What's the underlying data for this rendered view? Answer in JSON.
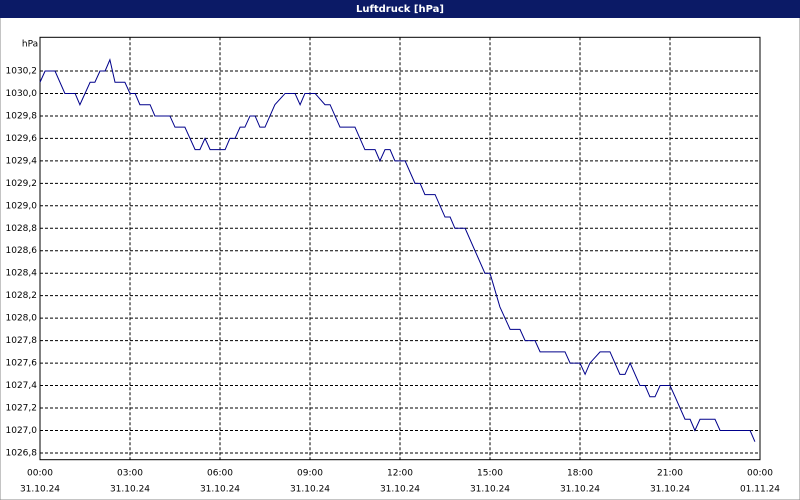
{
  "chart_data": {
    "type": "line",
    "title": "Luftdruck [hPa]",
    "y_unit": "hPa",
    "x": [
      0,
      0.17,
      0.5,
      0.83,
      1.17,
      1.33,
      1.67,
      1.83,
      2.0,
      2.17,
      2.33,
      2.5,
      2.83,
      3.0,
      3.17,
      3.33,
      3.67,
      3.83,
      4.33,
      4.5,
      4.83,
      5.17,
      5.33,
      5.5,
      5.67,
      6.17,
      6.33,
      6.5,
      6.67,
      6.83,
      7.0,
      7.17,
      7.33,
      7.5,
      7.83,
      8.17,
      8.5,
      8.67,
      8.83,
      9.17,
      9.5,
      9.67,
      10.0,
      10.5,
      10.83,
      11.17,
      11.33,
      11.5,
      11.67,
      11.83,
      12.17,
      12.5,
      12.67,
      12.83,
      13.17,
      13.5,
      13.67,
      13.83,
      14.17,
      14.83,
      15.0,
      15.33,
      15.67,
      16.0,
      16.17,
      16.5,
      16.67,
      17.5,
      17.67,
      18.0,
      18.17,
      18.33,
      18.67,
      19.0,
      19.33,
      19.5,
      19.67,
      20.0,
      20.17,
      20.33,
      20.5,
      20.67,
      21.0,
      21.17,
      21.5,
      21.67,
      21.83,
      22.0,
      22.5,
      22.67,
      23.67,
      23.83
    ],
    "series": [
      {
        "name": "Luftdruck",
        "color": "#00008b",
        "values": [
          1030.1,
          1030.2,
          1030.2,
          1030.0,
          1030.0,
          1029.9,
          1030.1,
          1030.1,
          1030.2,
          1030.2,
          1030.3,
          1030.1,
          1030.1,
          1030.0,
          1030.0,
          1029.9,
          1029.9,
          1029.8,
          1029.8,
          1029.7,
          1029.7,
          1029.5,
          1029.5,
          1029.6,
          1029.5,
          1029.5,
          1029.6,
          1029.6,
          1029.7,
          1029.7,
          1029.8,
          1029.8,
          1029.7,
          1029.7,
          1029.9,
          1030.0,
          1030.0,
          1029.9,
          1030.0,
          1030.0,
          1029.9,
          1029.9,
          1029.7,
          1029.7,
          1029.5,
          1029.5,
          1029.4,
          1029.5,
          1029.5,
          1029.4,
          1029.4,
          1029.2,
          1029.2,
          1029.1,
          1029.1,
          1028.9,
          1028.9,
          1028.8,
          1028.8,
          1028.4,
          1028.4,
          1028.1,
          1027.9,
          1027.9,
          1027.8,
          1027.8,
          1027.7,
          1027.7,
          1027.6,
          1027.6,
          1027.5,
          1027.6,
          1027.7,
          1027.7,
          1027.5,
          1027.5,
          1027.6,
          1027.4,
          1027.4,
          1027.3,
          1027.3,
          1027.4,
          1027.4,
          1027.3,
          1027.1,
          1027.1,
          1027.0,
          1027.1,
          1027.1,
          1027.0,
          1027.0,
          1026.9
        ]
      }
    ],
    "xlim": [
      0,
      24
    ],
    "xticks": [
      {
        "value": 0,
        "label": "00:00"
      },
      {
        "value": 3,
        "label": "03:00"
      },
      {
        "value": 6,
        "label": "06:00"
      },
      {
        "value": 9,
        "label": "09:00"
      },
      {
        "value": 12,
        "label": "12:00"
      },
      {
        "value": 15,
        "label": "15:00"
      },
      {
        "value": 18,
        "label": "18:00"
      },
      {
        "value": 21,
        "label": "21:00"
      },
      {
        "value": 24,
        "label": "00:00"
      }
    ],
    "xtick_dates": [
      "31.10.24",
      "31.10.24",
      "31.10.24",
      "31.10.24",
      "31.10.24",
      "31.10.24",
      "31.10.24",
      "31.10.24",
      "01.11.24"
    ],
    "ylim": [
      1026.74,
      1030.5
    ],
    "yticks": [
      {
        "value": 1026.8,
        "label": "1026,8"
      },
      {
        "value": 1027.0,
        "label": "1027,0"
      },
      {
        "value": 1027.2,
        "label": "1027,2"
      },
      {
        "value": 1027.4,
        "label": "1027,4"
      },
      {
        "value": 1027.6,
        "label": "1027,6"
      },
      {
        "value": 1027.8,
        "label": "1027,8"
      },
      {
        "value": 1028.0,
        "label": "1028,0"
      },
      {
        "value": 1028.2,
        "label": "1028,2"
      },
      {
        "value": 1028.4,
        "label": "1028,4"
      },
      {
        "value": 1028.6,
        "label": "1028,6"
      },
      {
        "value": 1028.8,
        "label": "1028,8"
      },
      {
        "value": 1029.0,
        "label": "1029,0"
      },
      {
        "value": 1029.2,
        "label": "1029,2"
      },
      {
        "value": 1029.4,
        "label": "1029,4"
      },
      {
        "value": 1029.6,
        "label": "1029,6"
      },
      {
        "value": 1029.8,
        "label": "1029,8"
      },
      {
        "value": 1030.0,
        "label": "1030,0"
      },
      {
        "value": 1030.2,
        "label": "1030,2"
      }
    ],
    "grid": true
  }
}
